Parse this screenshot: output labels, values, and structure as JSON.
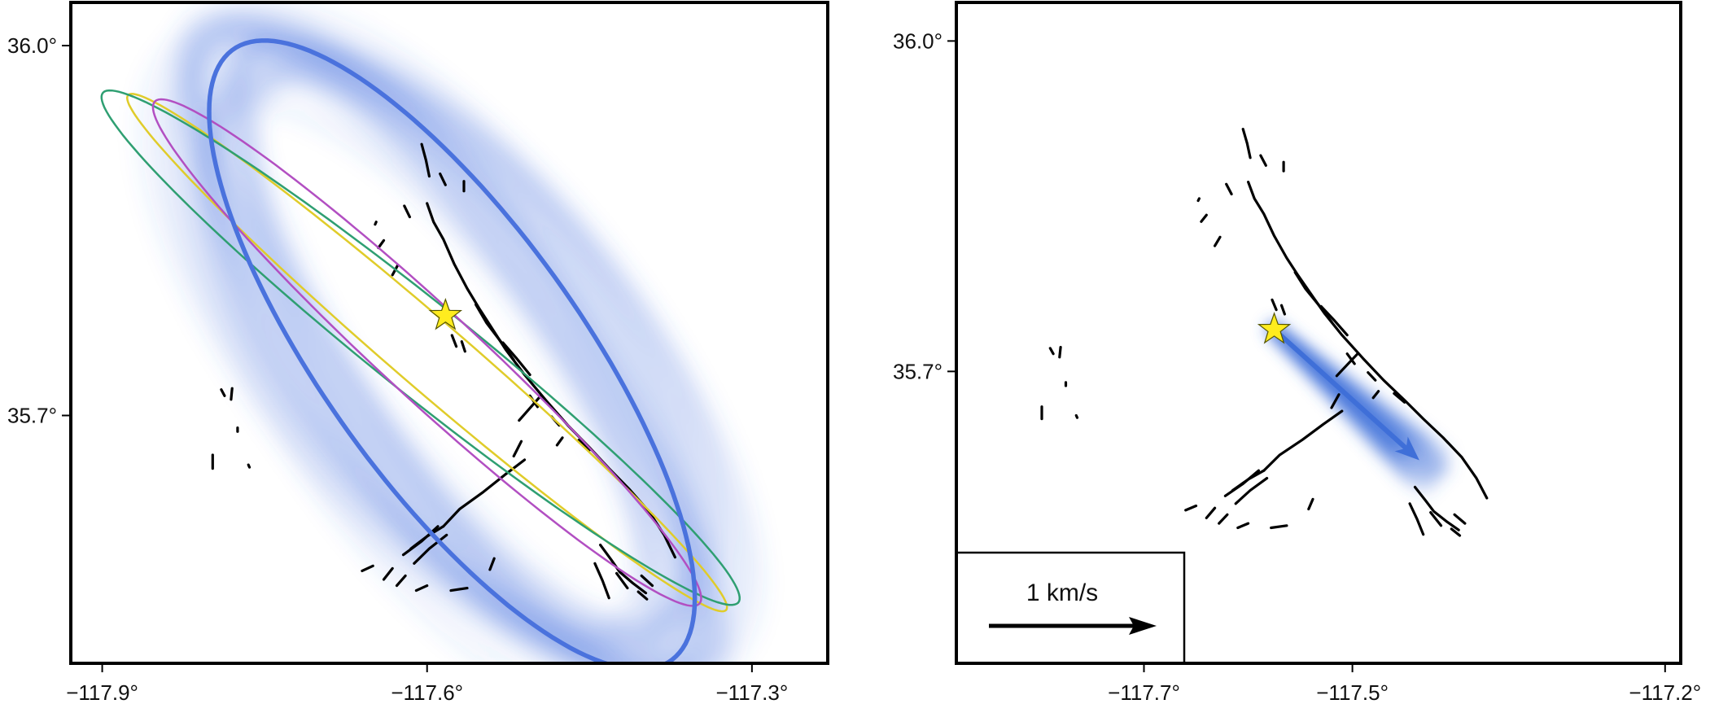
{
  "colors": {
    "frame": "#000000",
    "faults": "#000000",
    "epicenter_star": "#ffec1f",
    "ensemble_blue": "#3f6fd8",
    "ellipse_mean": "#4a72dd",
    "ellipse_magenta": "#b24fc2",
    "ellipse_green": "#2f9f72",
    "ellipse_yellow": "#e0cc2a",
    "arrow": "#3f6fd8"
  },
  "icons": {
    "epicenter": "star-icon",
    "scale_arrow": "arrow-right-icon"
  },
  "panels": [
    {
      "id": "left",
      "x_ticks": [
        {
          "value": -117.9,
          "label": "−117.9°"
        },
        {
          "value": -117.6,
          "label": "−117.6°"
        },
        {
          "value": -117.3,
          "label": "−117.3°"
        }
      ],
      "y_ticks": [
        {
          "value": 36.0,
          "label": "36.0°"
        },
        {
          "value": 35.7,
          "label": "35.7°"
        }
      ],
      "lon_range": [
        -117.929,
        -117.23
      ],
      "lat_range": [
        35.499,
        36.035
      ],
      "epicenter": {
        "lon": -117.583,
        "lat": 35.781
      },
      "ellipses": [
        {
          "name": "mean",
          "center": {
            "lon": -117.577,
            "lat": 35.749
          },
          "semi_major_km": 33,
          "semi_minor_km": 11,
          "azimuth_deg": 147
        },
        {
          "name": "magenta",
          "center": {
            "lon": -117.6,
            "lat": 35.751
          },
          "semi_major_km": 32,
          "semi_minor_km": 4,
          "azimuth_deg": 135
        },
        {
          "name": "green",
          "center": {
            "lon": -117.606,
            "lat": 35.755
          },
          "semi_major_km": 35,
          "semi_minor_km": 4,
          "azimuth_deg": 131
        },
        {
          "name": "yellow",
          "center": {
            "lon": -117.6,
            "lat": 35.751
          },
          "semi_major_km": 34,
          "semi_minor_km": 3,
          "azimuth_deg": 133
        }
      ]
    },
    {
      "id": "right",
      "x_ticks": [
        {
          "value": -117.7,
          "label": "−117.7°"
        },
        {
          "value": -117.5,
          "label": "−117.5°"
        },
        {
          "value": -117.2,
          "label": "−117.2°"
        }
      ],
      "y_ticks": [
        {
          "value": 36.0,
          "label": "36.0°"
        },
        {
          "value": 35.7,
          "label": "35.7°"
        }
      ],
      "lon_range": [
        -117.88,
        -117.185
      ],
      "lat_range": [
        35.435,
        36.035
      ],
      "epicenter": {
        "lon": -117.575,
        "lat": 35.738
      },
      "rupture_velocity": {
        "speed_km_s": 0.75,
        "azimuth_deg": 132
      },
      "scale_bar": {
        "label": "1 km/s",
        "speed_km_s": 1
      }
    }
  ],
  "faults": [
    [
      [
        -117.605,
        35.92
      ],
      [
        -117.601,
        35.907
      ],
      [
        -117.598,
        35.894
      ]
    ],
    [
      [
        -117.588,
        35.896
      ],
      [
        -117.583,
        35.887
      ]
    ],
    [
      [
        -117.566,
        35.89
      ],
      [
        -117.566,
        35.882
      ]
    ],
    [
      [
        -117.6,
        35.872
      ],
      [
        -117.594,
        35.857
      ],
      [
        -117.585,
        35.843
      ],
      [
        -117.575,
        35.823
      ],
      [
        -117.563,
        35.803
      ],
      [
        -117.552,
        35.787
      ],
      [
        -117.541,
        35.772
      ],
      [
        -117.527,
        35.753
      ],
      [
        -117.51,
        35.733
      ],
      [
        -117.49,
        35.712
      ],
      [
        -117.47,
        35.692
      ],
      [
        -117.45,
        35.674
      ],
      [
        -117.432,
        35.657
      ],
      [
        -117.413,
        35.64
      ],
      [
        -117.395,
        35.622
      ],
      [
        -117.381,
        35.603
      ],
      [
        -117.371,
        35.585
      ]
    ],
    [
      [
        -117.555,
        35.79
      ],
      [
        -117.545,
        35.775
      ],
      [
        -117.532,
        35.76
      ],
      [
        -117.52,
        35.745
      ]
    ],
    [
      [
        -117.53,
        35.759
      ],
      [
        -117.518,
        35.747
      ],
      [
        -117.505,
        35.733
      ]
    ],
    [
      [
        -117.568,
        35.76
      ],
      [
        -117.565,
        35.752
      ]
    ],
    [
      [
        -117.577,
        35.765
      ],
      [
        -117.573,
        35.756
      ]
    ],
    [
      [
        -117.505,
        35.716
      ],
      [
        -117.498,
        35.707
      ]
    ],
    [
      [
        -117.485,
        35.699
      ],
      [
        -117.478,
        35.692
      ]
    ],
    [
      [
        -117.515,
        35.696
      ],
      [
        -117.505,
        35.706
      ],
      [
        -117.495,
        35.716
      ]
    ],
    [
      [
        -117.52,
        35.667
      ],
      [
        -117.513,
        35.679
      ]
    ],
    [
      [
        -117.48,
        35.676
      ],
      [
        -117.475,
        35.682
      ]
    ],
    [
      [
        -117.46,
        35.68
      ],
      [
        -117.45,
        35.672
      ]
    ],
    [
      [
        -117.51,
        35.664
      ],
      [
        -117.528,
        35.652
      ],
      [
        -117.548,
        35.638
      ],
      [
        -117.57,
        35.624
      ],
      [
        -117.585,
        35.61
      ]
    ],
    [
      [
        -117.585,
        35.61
      ],
      [
        -117.6,
        35.602
      ],
      [
        -117.615,
        35.592
      ]
    ],
    [
      [
        -117.59,
        35.61
      ],
      [
        -117.605,
        35.598
      ],
      [
        -117.622,
        35.587
      ]
    ],
    [
      [
        -117.582,
        35.603
      ],
      [
        -117.598,
        35.592
      ],
      [
        -117.612,
        35.58
      ]
    ],
    [
      [
        -117.632,
        35.576
      ],
      [
        -117.64,
        35.567
      ]
    ],
    [
      [
        -117.62,
        35.57
      ],
      [
        -117.628,
        35.562
      ]
    ],
    [
      [
        -117.65,
        35.578
      ],
      [
        -117.66,
        35.574
      ]
    ],
    [
      [
        -117.6,
        35.562
      ],
      [
        -117.61,
        35.558
      ]
    ],
    [
      [
        -117.563,
        35.56
      ],
      [
        -117.578,
        35.558
      ]
    ],
    [
      [
        -117.538,
        35.584
      ],
      [
        -117.542,
        35.575
      ]
    ],
    [
      [
        -117.44,
        35.595
      ],
      [
        -117.43,
        35.583
      ],
      [
        -117.422,
        35.573
      ],
      [
        -117.41,
        35.564
      ],
      [
        -117.398,
        35.556
      ]
    ],
    [
      [
        -117.445,
        35.58
      ],
      [
        -117.438,
        35.566
      ],
      [
        -117.432,
        35.552
      ]
    ],
    [
      [
        -117.425,
        35.572
      ],
      [
        -117.415,
        35.56
      ]
    ],
    [
      [
        -117.405,
        35.557
      ],
      [
        -117.397,
        35.551
      ]
    ],
    [
      [
        -117.402,
        35.57
      ],
      [
        -117.392,
        35.562
      ]
    ],
    [
      [
        -117.79,
        35.721
      ],
      [
        -117.787,
        35.716
      ]
    ],
    [
      [
        -117.78,
        35.722
      ],
      [
        -117.781,
        35.713
      ]
    ],
    [
      [
        -117.775,
        35.69
      ],
      [
        -117.775,
        35.687
      ]
    ],
    [
      [
        -117.798,
        35.668
      ],
      [
        -117.798,
        35.657
      ]
    ],
    [
      [
        -117.765,
        35.66
      ],
      [
        -117.764,
        35.658
      ]
    ],
    [
      [
        -117.64,
        35.842
      ],
      [
        -117.645,
        35.836
      ]
    ],
    [
      [
        -117.627,
        35.822
      ],
      [
        -117.632,
        35.814
      ]
    ],
    [
      [
        -117.621,
        35.87
      ],
      [
        -117.616,
        35.861
      ]
    ],
    [
      [
        -117.647,
        35.857
      ],
      [
        -117.648,
        35.855
      ]
    ]
  ]
}
